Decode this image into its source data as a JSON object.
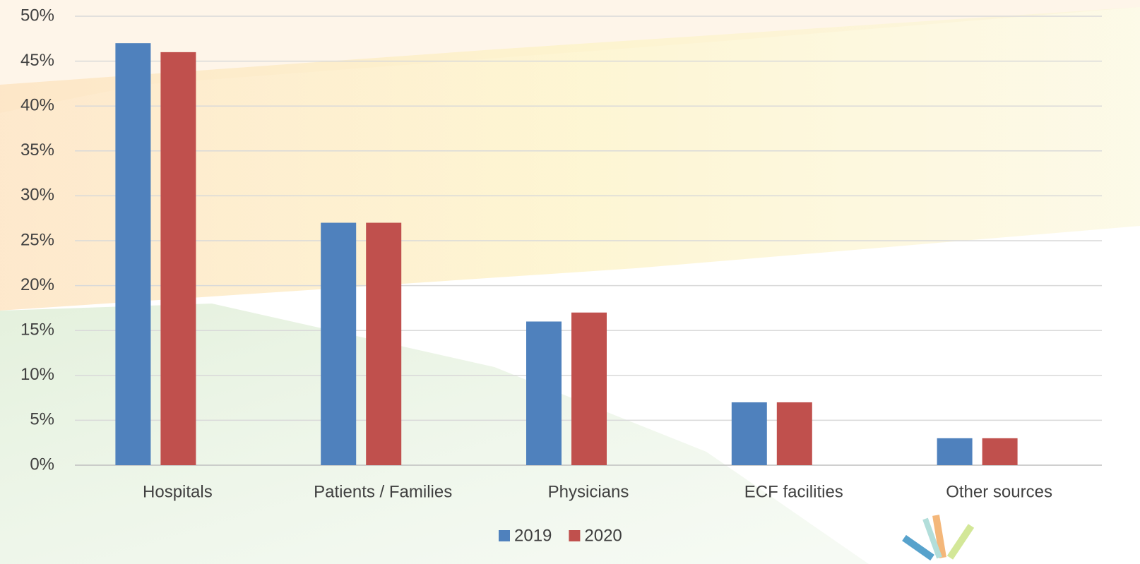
{
  "chart_data": {
    "type": "bar",
    "categories": [
      "Hospitals",
      "Patients / Families",
      "Physicians",
      "ECF facilities",
      "Other sources"
    ],
    "series": [
      {
        "name": "2019",
        "color": "#4f81bd",
        "values": [
          47,
          27,
          16,
          7,
          3
        ]
      },
      {
        "name": "2020",
        "color": "#c0504d",
        "values": [
          46,
          27,
          17,
          7,
          3
        ]
      }
    ],
    "ylim": [
      0,
      50
    ],
    "yticks": [
      {
        "value": 0,
        "label": "0%"
      },
      {
        "value": 5,
        "label": "5%"
      },
      {
        "value": 10,
        "label": "10%"
      },
      {
        "value": 15,
        "label": "15%"
      },
      {
        "value": 20,
        "label": "20%"
      },
      {
        "value": 25,
        "label": "25%"
      },
      {
        "value": 30,
        "label": "30%"
      },
      {
        "value": 35,
        "label": "35%"
      },
      {
        "value": 40,
        "label": "40%"
      },
      {
        "value": 45,
        "label": "45%"
      },
      {
        "value": 50,
        "label": "50%"
      }
    ],
    "grid": true,
    "legend": "bottom"
  }
}
